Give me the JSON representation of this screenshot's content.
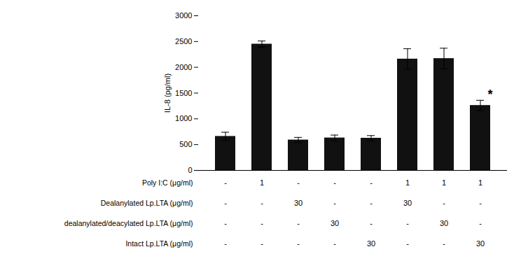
{
  "chart_data": {
    "type": "bar",
    "categories": [
      null,
      null,
      null,
      null,
      null,
      null,
      null,
      null
    ],
    "values": [
      660,
      2450,
      590,
      630,
      625,
      2160,
      2170,
      1260
    ],
    "errors": [
      80,
      60,
      50,
      55,
      50,
      200,
      200,
      100
    ],
    "color": "#111111",
    "ylabel": "IL-8 (pg/ml)",
    "ylim": [
      0,
      3000
    ],
    "yticks": [
      0,
      500,
      1000,
      1500,
      2000,
      2500,
      3000
    ],
    "grid": false,
    "annotations": [
      {
        "text": "*",
        "category_index": 7
      }
    ],
    "table_rows": [
      {
        "label": "Poly I:C (μg/ml)",
        "cells": [
          "-",
          "1",
          "-",
          "-",
          "-",
          "1",
          "1",
          "1"
        ]
      },
      {
        "label": "Dealanylated Lp.LTA (μg/ml)",
        "cells": [
          "-",
          "-",
          "30",
          "-",
          "-",
          "30",
          "-",
          "-"
        ]
      },
      {
        "label": "dealanylated/deacylated Lp.LTA (μg/ml)",
        "cells": [
          "-",
          "-",
          "-",
          "30",
          "-",
          "-",
          "30",
          "-"
        ]
      },
      {
        "label": "Intact Lp.LTA (μg/ml)",
        "cells": [
          "-",
          "-",
          "-",
          "-",
          "30",
          "-",
          "-",
          "30"
        ]
      }
    ]
  }
}
